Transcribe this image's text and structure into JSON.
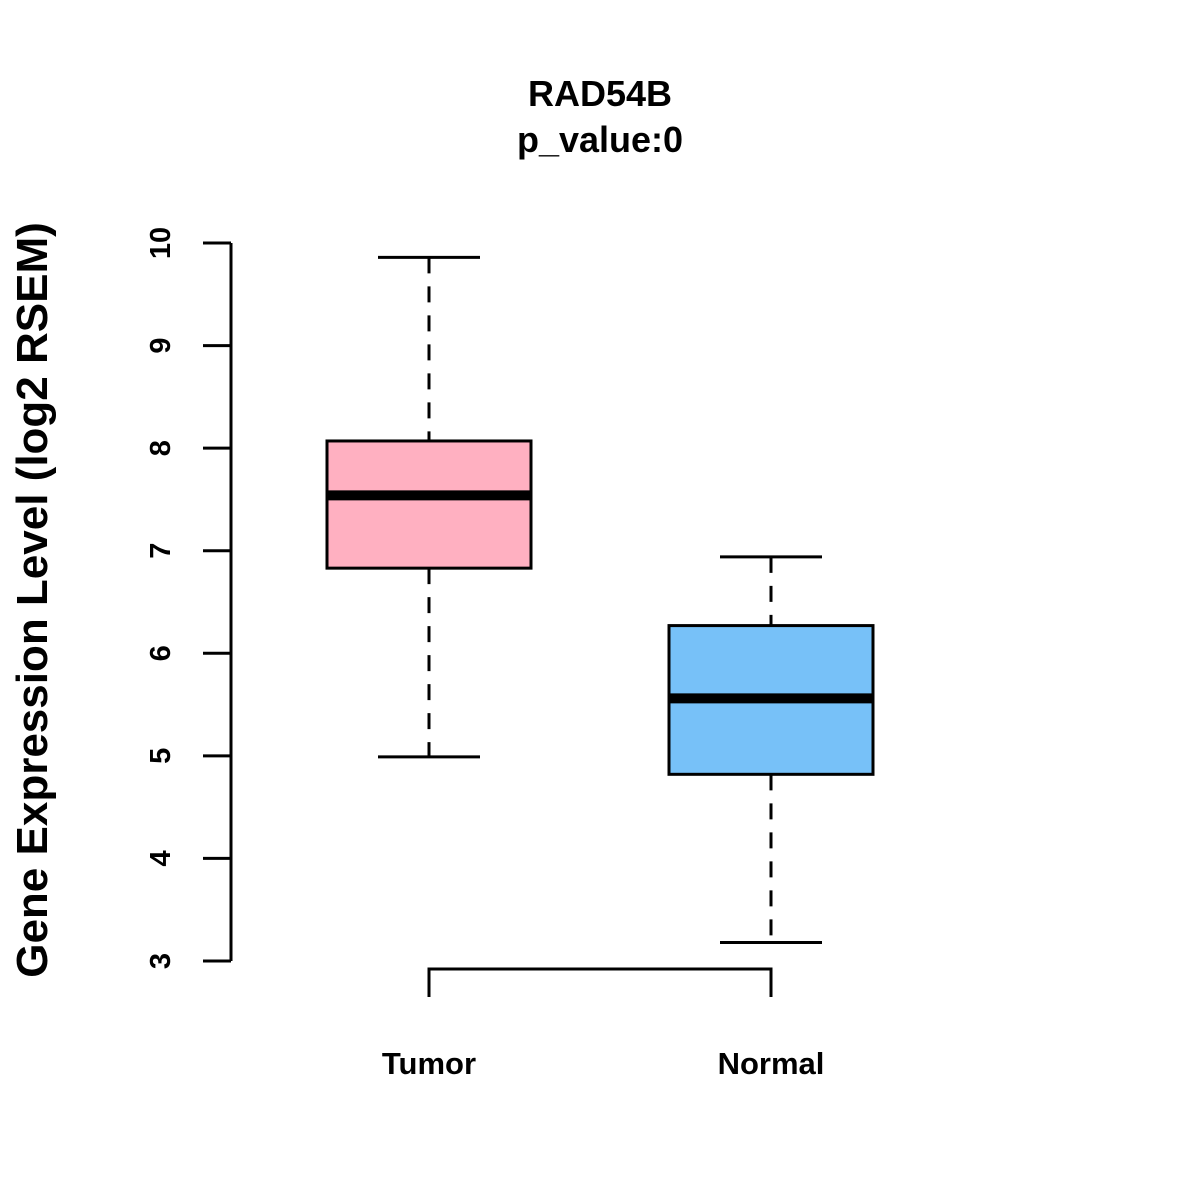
{
  "chart_data": {
    "type": "boxplot",
    "title": "RAD54B",
    "subtitle": "p_value:0",
    "ylabel": "Gene Expression Level (log2 RSEM)",
    "xlabel": "",
    "ylim": [
      3,
      10
    ],
    "yticks": [
      3,
      4,
      5,
      6,
      7,
      8,
      9,
      10
    ],
    "categories": [
      "Tumor",
      "Normal"
    ],
    "boxes": [
      {
        "name": "Tumor",
        "whisker_low": 4.99,
        "q1": 6.83,
        "median": 7.54,
        "q3": 8.07,
        "whisker_high": 9.86,
        "color": "#FFB0C1"
      },
      {
        "name": "Normal",
        "whisker_low": 3.18,
        "q1": 4.82,
        "median": 5.56,
        "q3": 6.27,
        "whisker_high": 6.94,
        "color": "#77C1F8"
      }
    ],
    "grid": false
  }
}
